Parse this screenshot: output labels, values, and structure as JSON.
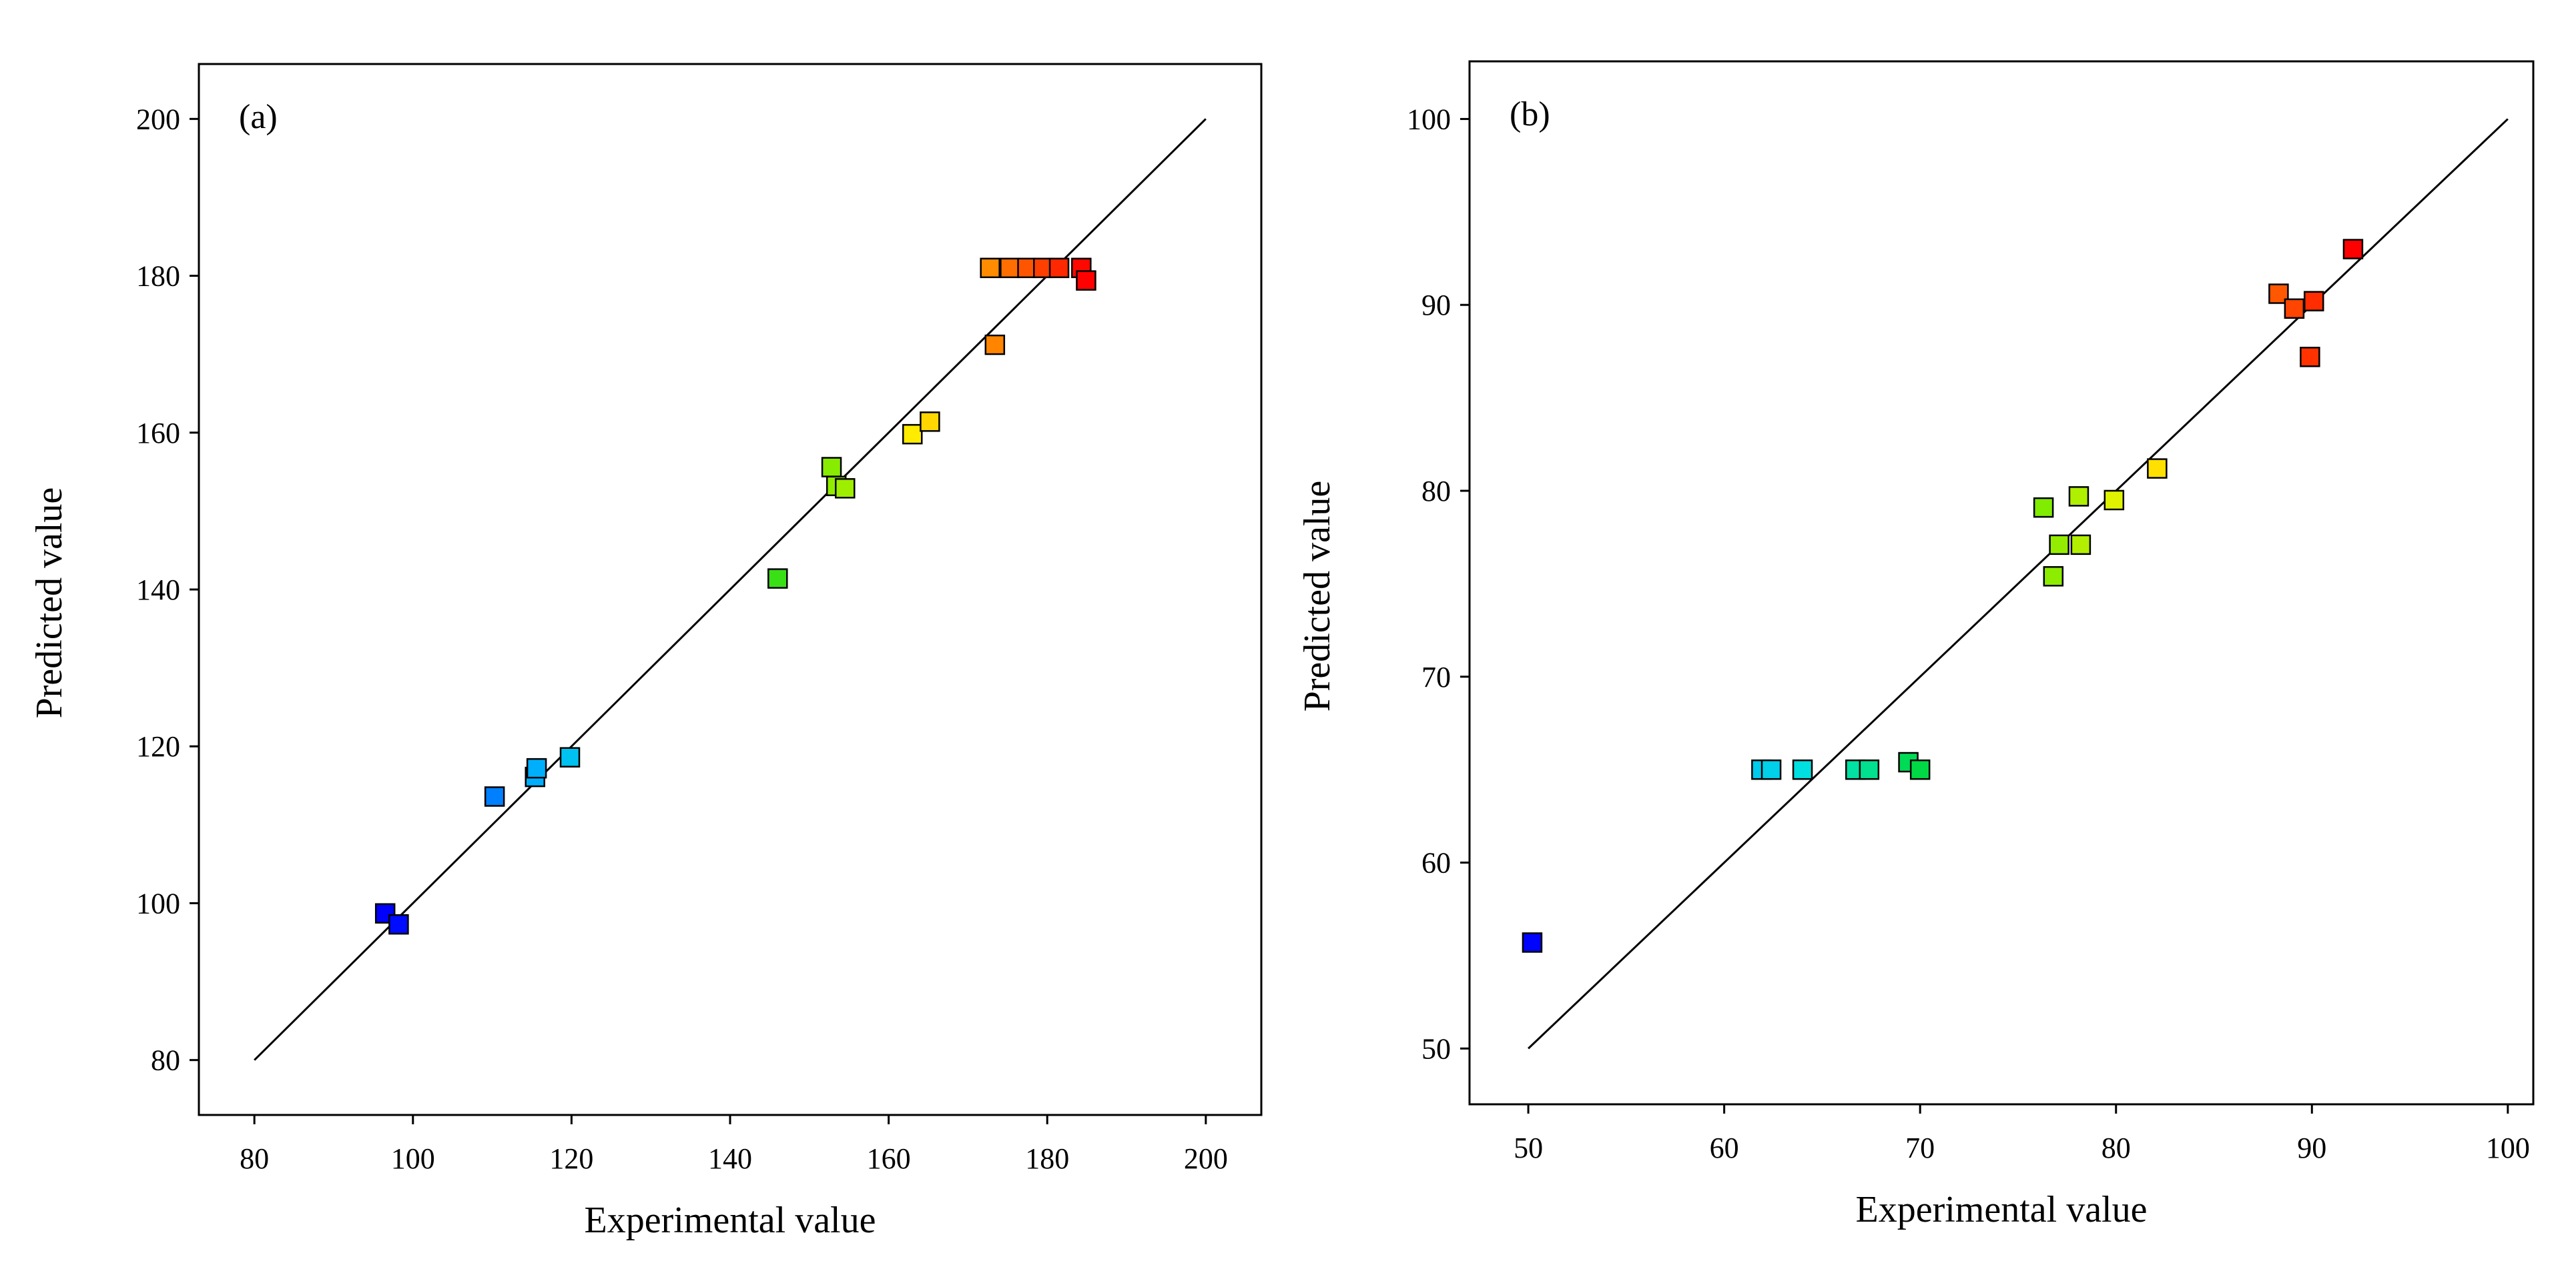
{
  "chart_data": [
    {
      "type": "scatter",
      "panel_label": "(a)",
      "xlabel": "Experimental value",
      "ylabel": "Predicted value",
      "xlim": [
        73,
        207
      ],
      "ylim": [
        73,
        207
      ],
      "xticks": [
        80,
        100,
        120,
        140,
        160,
        180,
        200
      ],
      "yticks": [
        80,
        100,
        120,
        140,
        160,
        180,
        200
      ],
      "xtick_labels": [
        "80",
        "100",
        "120",
        "140",
        "160",
        "180",
        "200"
      ],
      "ytick_labels": [
        "80",
        "100",
        "120",
        "140",
        "160",
        "180",
        "200"
      ],
      "reference_line": {
        "x": [
          80,
          200
        ],
        "y": [
          80,
          200
        ]
      },
      "grid": false,
      "color_scale": {
        "min": 97,
        "max": 185
      },
      "points": [
        {
          "x": 96.5,
          "y": 98.7
        },
        {
          "x": 98.2,
          "y": 97.3
        },
        {
          "x": 110.3,
          "y": 113.6
        },
        {
          "x": 115.4,
          "y": 116.1
        },
        {
          "x": 115.6,
          "y": 117.2
        },
        {
          "x": 119.8,
          "y": 118.6
        },
        {
          "x": 146.0,
          "y": 141.4
        },
        {
          "x": 152.8,
          "y": 155.6
        },
        {
          "x": 153.4,
          "y": 153.2
        },
        {
          "x": 154.5,
          "y": 152.9
        },
        {
          "x": 163.0,
          "y": 159.8
        },
        {
          "x": 165.2,
          "y": 161.4
        },
        {
          "x": 173.4,
          "y": 171.2
        },
        {
          "x": 172.8,
          "y": 181.0
        },
        {
          "x": 175.3,
          "y": 181.0
        },
        {
          "x": 177.5,
          "y": 181.0
        },
        {
          "x": 179.5,
          "y": 181.0
        },
        {
          "x": 181.5,
          "y": 181.0
        },
        {
          "x": 184.3,
          "y": 181.0
        },
        {
          "x": 184.9,
          "y": 179.4
        }
      ]
    },
    {
      "type": "scatter",
      "panel_label": "(b)",
      "xlabel": "Experimental value",
      "ylabel": "Predicted value",
      "xlim": [
        47,
        101.3
      ],
      "ylim": [
        47,
        103.1
      ],
      "xticks": [
        50,
        60,
        70,
        80,
        90,
        100
      ],
      "yticks": [
        50,
        60,
        70,
        80,
        90,
        100
      ],
      "xtick_labels": [
        "50",
        "60",
        "70",
        "80",
        "90",
        "100"
      ],
      "ytick_labels": [
        "50",
        "60",
        "70",
        "80",
        "90",
        "100"
      ],
      "reference_line": {
        "x": [
          50,
          100
        ],
        "y": [
          50,
          100
        ]
      },
      "grid": false,
      "color_scale": {
        "min": 50,
        "max": 92
      },
      "points": [
        {
          "x": 50.2,
          "y": 55.7
        },
        {
          "x": 61.9,
          "y": 65.0
        },
        {
          "x": 62.4,
          "y": 65.0
        },
        {
          "x": 64.0,
          "y": 65.0
        },
        {
          "x": 66.7,
          "y": 65.0
        },
        {
          "x": 67.4,
          "y": 65.0
        },
        {
          "x": 69.4,
          "y": 65.4
        },
        {
          "x": 70.0,
          "y": 65.0
        },
        {
          "x": 76.3,
          "y": 79.1
        },
        {
          "x": 76.8,
          "y": 75.4
        },
        {
          "x": 77.1,
          "y": 77.1
        },
        {
          "x": 78.1,
          "y": 79.7
        },
        {
          "x": 78.2,
          "y": 77.1
        },
        {
          "x": 79.9,
          "y": 79.5
        },
        {
          "x": 82.1,
          "y": 81.2
        },
        {
          "x": 88.3,
          "y": 90.6
        },
        {
          "x": 89.1,
          "y": 89.8
        },
        {
          "x": 89.9,
          "y": 87.2
        },
        {
          "x": 90.1,
          "y": 90.2
        },
        {
          "x": 92.1,
          "y": 93.0
        }
      ]
    }
  ]
}
